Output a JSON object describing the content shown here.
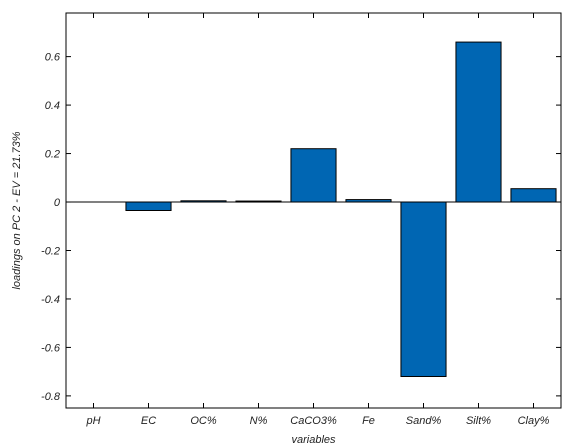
{
  "chart_data": {
    "type": "bar",
    "categories": [
      "pH",
      "EC",
      "OC%",
      "N%",
      "CaCO3%",
      "Fe",
      "Sand%",
      "Silt%",
      "Clay%"
    ],
    "values": [
      0.0,
      -0.035,
      0.005,
      0.004,
      0.22,
      0.01,
      -0.72,
      0.66,
      0.055
    ],
    "xlabel": "variables",
    "ylabel": "loadings on PC 2 - EV = 21.73%",
    "ylim": [
      -0.85,
      0.78
    ],
    "yticks": [
      -0.8,
      -0.6,
      -0.4,
      -0.2,
      0,
      0.2,
      0.4,
      0.6
    ],
    "ytick_labels": [
      "-0.8",
      "-0.6",
      "-0.4",
      "-0.2",
      "0",
      "0.2",
      "0.4",
      "0.6"
    ],
    "bar_color": "#0066b3",
    "grid": false,
    "legend": "none"
  }
}
